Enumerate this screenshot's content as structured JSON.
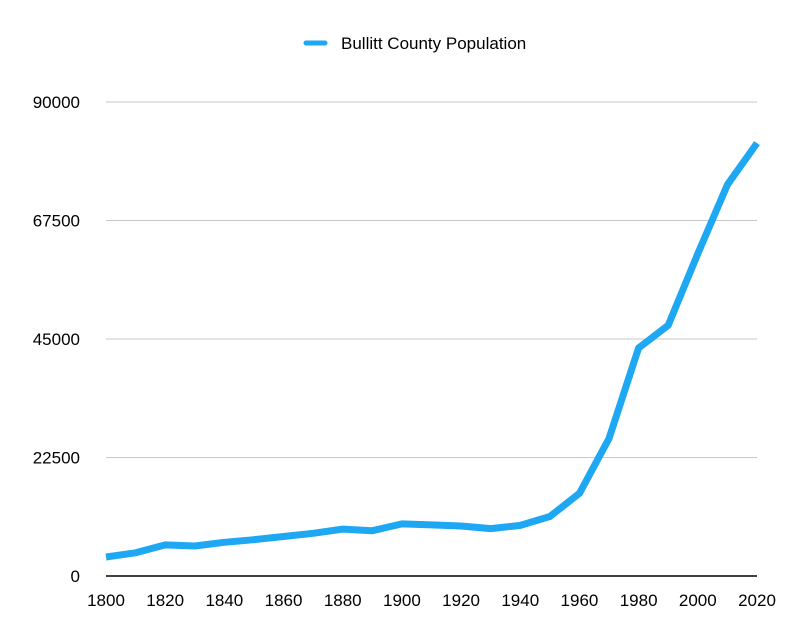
{
  "chart_data": {
    "type": "line",
    "title": "",
    "xlabel": "",
    "ylabel": "",
    "x": [
      1800,
      1810,
      1820,
      1830,
      1840,
      1850,
      1860,
      1870,
      1880,
      1890,
      1900,
      1910,
      1920,
      1930,
      1940,
      1950,
      1960,
      1970,
      1980,
      1990,
      2000,
      2010,
      2020
    ],
    "series": [
      {
        "name": "Bullitt County Population",
        "color": "#1ea7f2",
        "values": [
          3600,
          4400,
          5900,
          5700,
          6400,
          6900,
          7500,
          8100,
          8900,
          8600,
          9900,
          9700,
          9500,
          9000,
          9600,
          11300,
          15700,
          26100,
          43300,
          47600,
          61200,
          74300,
          82200
        ]
      }
    ],
    "x_ticks": [
      "1800",
      "1820",
      "1840",
      "1860",
      "1880",
      "1900",
      "1920",
      "1940",
      "1960",
      "1980",
      "2000",
      "2020"
    ],
    "y_ticks": [
      "0",
      "22500",
      "45000",
      "67500",
      "90000"
    ],
    "xlim": [
      1800,
      2020
    ],
    "ylim": [
      0,
      90000
    ],
    "grid": "horizontal",
    "legend_position": "top-center"
  }
}
